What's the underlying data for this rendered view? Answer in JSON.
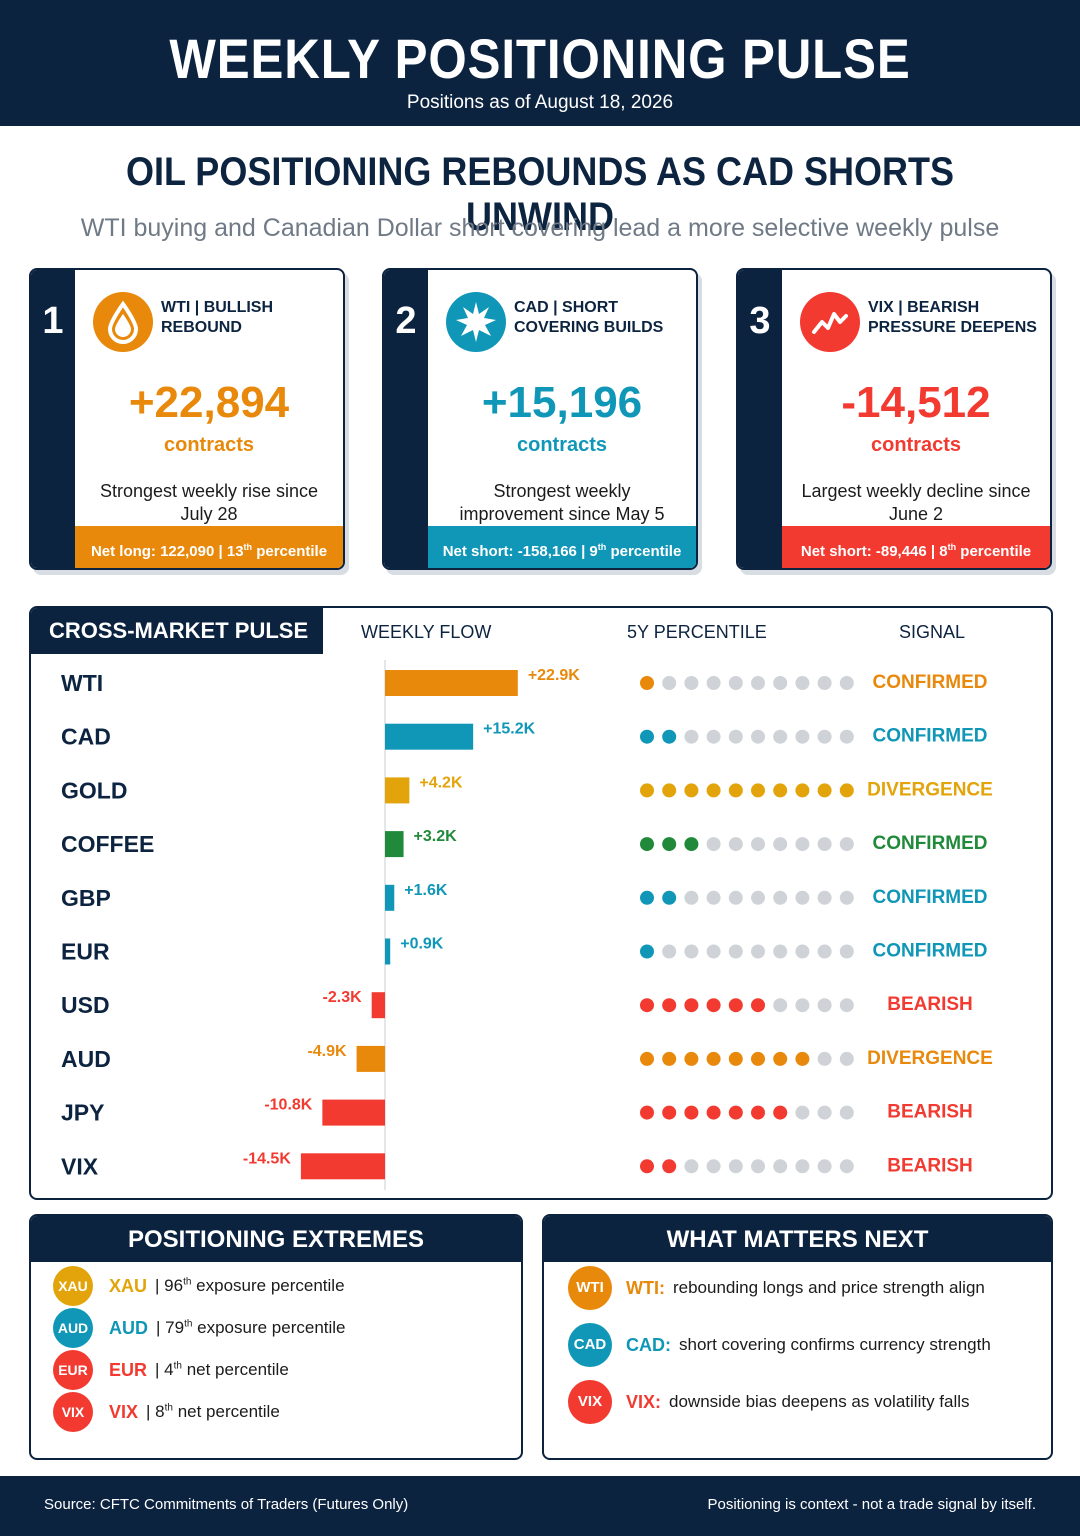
{
  "header": {
    "title": "WEEKLY POSITIONING PULSE",
    "subtitle": "Positions as of August 18, 2026"
  },
  "headline": "OIL POSITIONING REBOUNDS AS CAD SHORTS UNWIND",
  "subheadline": "WTI buying and Canadian Dollar short covering lead a more selective weekly pulse",
  "colors": {
    "navy": "#0c2340",
    "orange": "#e8890c",
    "teal": "#1097b8",
    "red": "#f23a30",
    "gold": "#e2a40a",
    "green": "#218a3a",
    "gray_dot": "#cfd3d8"
  },
  "cards": [
    {
      "rank": "1",
      "icon": "oil-drop-icon",
      "label": "WTI | BULLISH REBOUND",
      "value": "+22,894",
      "unit": "contracts",
      "description": "Strongest weekly rise since July 28",
      "footer_main": "Net long: 122,090 | 13",
      "footer_sup": "th",
      "footer_end": " percentile",
      "color": "#e8890c"
    },
    {
      "rank": "2",
      "icon": "maple-leaf-icon",
      "label": "CAD | SHORT COVERING BUILDS",
      "value": "+15,196",
      "unit": "contracts",
      "description": "Strongest weekly improvement since May 5",
      "footer_main": "Net short: -158,166 | 9",
      "footer_sup": "th",
      "footer_end": " percentile",
      "color": "#1097b8"
    },
    {
      "rank": "3",
      "icon": "volatility-line-icon",
      "label": "VIX | BEARISH PRESSURE DEEPENS",
      "value": "-14,512",
      "unit": "contracts",
      "description": "Largest weekly decline since June 2",
      "footer_main": "Net short: -89,446 | 8",
      "footer_sup": "th",
      "footer_end": " percentile",
      "color": "#f23a30"
    }
  ],
  "pulse": {
    "title": "CROSS-MARKET PULSE",
    "col_flow": "WEEKLY FLOW",
    "col_percentile": "5Y PERCENTILE",
    "col_signal": "SIGNAL"
  },
  "chart_data": {
    "type": "bar",
    "orientation": "horizontal",
    "title": "CROSS-MARKET PULSE",
    "xlabel": "WEEKLY FLOW",
    "unit": "K contracts",
    "categories": [
      "WTI",
      "CAD",
      "GOLD",
      "COFFEE",
      "GBP",
      "EUR",
      "USD",
      "AUD",
      "JPY",
      "VIX"
    ],
    "values": [
      22.9,
      15.2,
      4.2,
      3.2,
      1.6,
      0.9,
      -2.3,
      -4.9,
      -10.8,
      -14.5
    ],
    "value_labels": [
      "+22.9K",
      "+15.2K",
      "+4.2K",
      "+3.2K",
      "+1.6K",
      "+0.9K",
      "-2.3K",
      "-4.9K",
      "-10.8K",
      "-14.5K"
    ],
    "bar_colors": [
      "#e8890c",
      "#1097b8",
      "#e2a40a",
      "#218a3a",
      "#1097b8",
      "#1097b8",
      "#f23a30",
      "#e8890c",
      "#f23a30",
      "#f23a30"
    ],
    "percentile_dots_filled": [
      1,
      2,
      10,
      3,
      2,
      1,
      6,
      8,
      7,
      2
    ],
    "percentile_dots_total": 10,
    "signals": [
      "CONFIRMED",
      "CONFIRMED",
      "DIVERGENCE",
      "CONFIRMED",
      "CONFIRMED",
      "CONFIRMED",
      "BEARISH",
      "DIVERGENCE",
      "BEARISH",
      "BEARISH"
    ],
    "xlim": [
      -25,
      25
    ]
  },
  "extremes": {
    "title": "POSITIONING EXTREMES",
    "items": [
      {
        "code": "XAU",
        "pct": "96",
        "sup": "th",
        "text": "exposure percentile",
        "color": "#e2a40a"
      },
      {
        "code": "AUD",
        "pct": "79",
        "sup": "th",
        "text": "exposure percentile",
        "color": "#1097b8"
      },
      {
        "code": "EUR",
        "pct": "4",
        "sup": "th",
        "text": "net percentile",
        "color": "#f23a30"
      },
      {
        "code": "VIX",
        "pct": "8",
        "sup": "th",
        "text": "net percentile",
        "color": "#f23a30"
      }
    ]
  },
  "next": {
    "title": "WHAT MATTERS NEXT",
    "items": [
      {
        "code": "WTI",
        "label": "WTI:",
        "text": "rebounding longs and price strength align",
        "color": "#e8890c"
      },
      {
        "code": "CAD",
        "label": "CAD:",
        "text": "short covering confirms currency strength",
        "color": "#1097b8"
      },
      {
        "code": "VIX",
        "label": "VIX:",
        "text": "downside bias deepens as volatility falls",
        "color": "#f23a30"
      }
    ]
  },
  "footer": {
    "source": "Source: CFTC Commitments of Traders (Futures Only)",
    "disclaimer": "Positioning is context - not a trade signal by itself."
  }
}
